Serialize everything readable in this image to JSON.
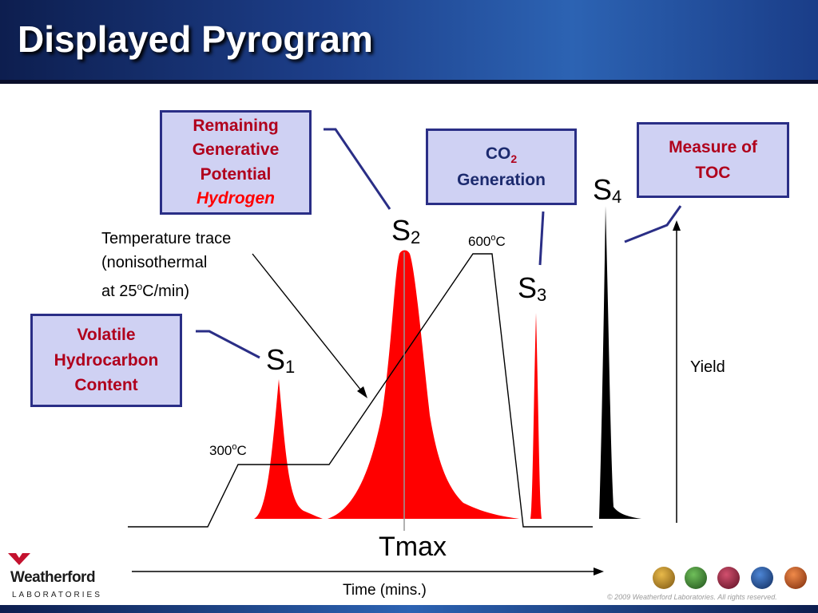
{
  "title": "Displayed Pyrogram",
  "boxes": {
    "remaining": {
      "line1": "Remaining",
      "line2": "Generative",
      "line3": "Potential",
      "line4": "Hydrogen"
    },
    "co2": {
      "main": "CO",
      "sub": "2",
      "line2": "Generation"
    },
    "toc": {
      "line1": "Measure of",
      "line2": "TOC"
    },
    "volatile": {
      "line1": "Volatile",
      "line2": "Hydrocarbon",
      "line3": "Content"
    }
  },
  "peaks": {
    "s1": {
      "main": "S",
      "sub": "1"
    },
    "s2": {
      "main": "S",
      "sub": "2"
    },
    "s3": {
      "main": "S",
      "sub": "3"
    },
    "s4": {
      "main": "S",
      "sub": "4"
    }
  },
  "temperature": {
    "line1": "Temperature trace",
    "line2": "(nonisothermal",
    "line3_pre": "at 25",
    "line3_sup": "o",
    "line3_post": "C/min)"
  },
  "temp_600": {
    "num": "600",
    "sup": "o",
    "unit": "C"
  },
  "temp_300": {
    "num": "300",
    "sup": "o",
    "unit": "C"
  },
  "yield_label": "Yield",
  "tmax_label": "Tmax",
  "time_label": "Time (mins.)",
  "logo": {
    "name": "Weatherford",
    "sub": "LABORATORIES"
  },
  "footer": "© 2009 Weatherford Laboratories. All rights reserved.",
  "colors": {
    "peak": "#ff0000",
    "s4": "#000000",
    "box_fill": "#cfd1f3",
    "box_border": "#2a2e86",
    "connector": "#2a2e86"
  }
}
